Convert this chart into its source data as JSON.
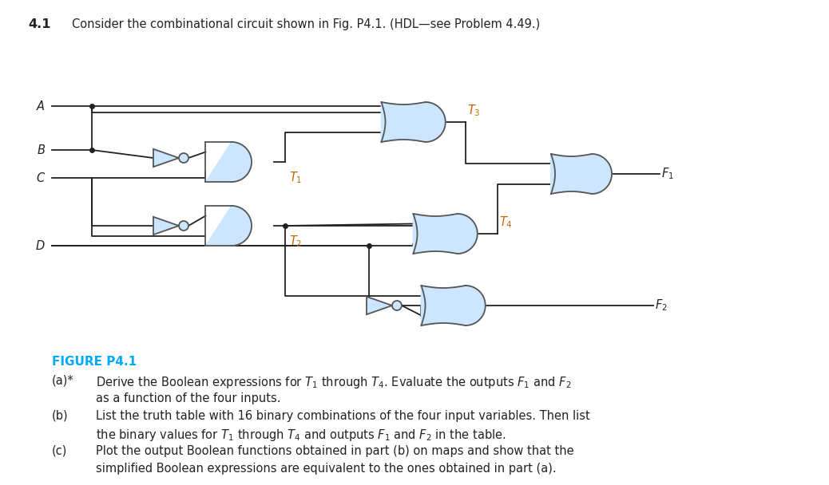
{
  "title_num": "4.1",
  "title_text": "Consider the combinational circuit shown in Fig. P4.1. (HDL—see Problem 4.49.)",
  "figure_label": "FIGURE P4.1",
  "figure_color": "#00aaff",
  "gate_fill": "#cce6ff",
  "gate_edge": "#555555",
  "wire_color": "#222222",
  "text_color": "#222222",
  "italic_labels": [
    "A",
    "B",
    "C",
    "D",
    "T_1",
    "T_2",
    "T_3",
    "T_4",
    "F_1",
    "F_2"
  ],
  "parts": [
    "(a)* Derive the Boolean expressions for $T_1$ through $T_4$. Evaluate the outputs $F_1$ and $F_2$\n      as a function of the four inputs.",
    "(b)   List the truth table with 16 binary combinations of the four input variables. Then list\n      the binary values for $T_1$ through $T_4$ and outputs $F_1$ and $F_2$ in the table.",
    "(c)   Plot the output Boolean functions obtained in part (b) on maps and show that the\n      simplified Boolean expressions are equivalent to the ones obtained in part (a)."
  ],
  "bg_color": "#ffffff"
}
